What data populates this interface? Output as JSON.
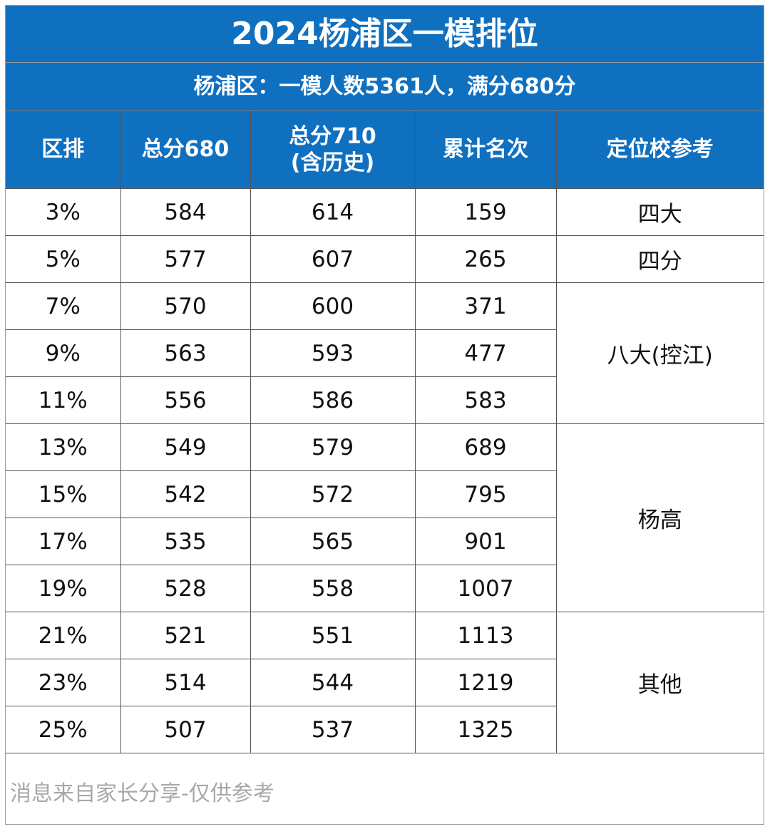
{
  "title": "2024杨浦区一模排位",
  "subtitle": "杨浦区：一模人数5361人，满分680分",
  "table": {
    "headers": [
      "区排",
      "总分680",
      "总分710\n(含历史)",
      "累计名次",
      "定位校参考"
    ],
    "rows": [
      [
        "3%",
        "584",
        "614",
        "159"
      ],
      [
        "5%",
        "577",
        "607",
        "265"
      ],
      [
        "7%",
        "570",
        "600",
        "371"
      ],
      [
        "9%",
        "563",
        "593",
        "477"
      ],
      [
        "11%",
        "556",
        "586",
        "583"
      ],
      [
        "13%",
        "549",
        "579",
        "689"
      ],
      [
        "15%",
        "542",
        "572",
        "795"
      ],
      [
        "17%",
        "535",
        "565",
        "901"
      ],
      [
        "19%",
        "528",
        "558",
        "1007"
      ],
      [
        "21%",
        "521",
        "551",
        "1113"
      ],
      [
        "23%",
        "514",
        "544",
        "1219"
      ],
      [
        "25%",
        "507",
        "537",
        "1325"
      ]
    ],
    "school_groups": [
      {
        "label": "四大",
        "rows": 1
      },
      {
        "label": "四分",
        "rows": 1
      },
      {
        "label": "八大(控江)",
        "rows": 3
      },
      {
        "label": "杨高",
        "rows": 4
      },
      {
        "label": "其他",
        "rows": 3
      }
    ]
  },
  "footnote": "消息来自家长分享-仅供参考",
  "colors": {
    "header_blue": "#1070c0",
    "header_text": "#ffffff",
    "grid": "#555555",
    "footnote_text": "#a8a8a8"
  }
}
